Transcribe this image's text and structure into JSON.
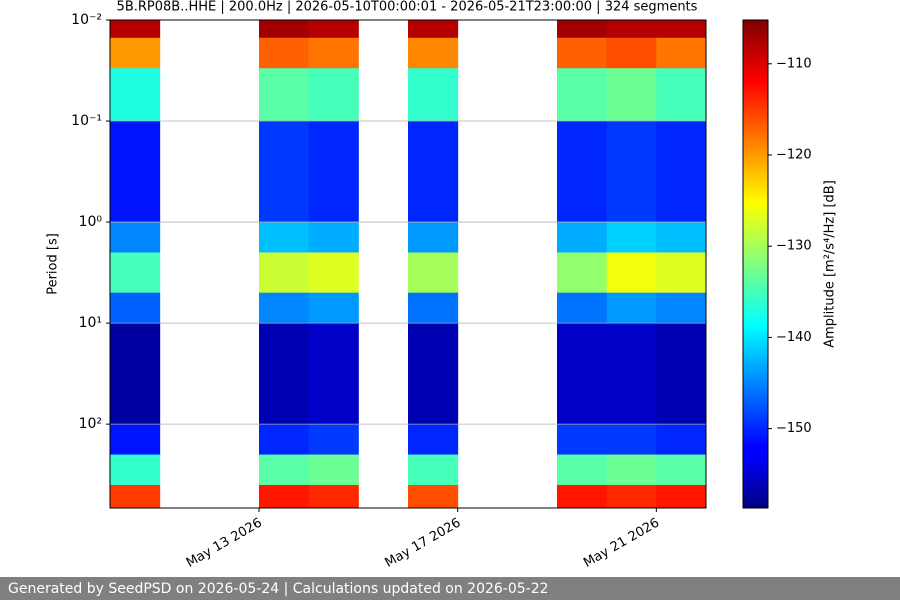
{
  "chart_data": {
    "type": "heatmap",
    "title": "5B.RP08B..HHE | 200.0Hz | 2026-05-10T00:00:01 - 2026-05-21T23:00:00 | 324 segments",
    "ylabel": "Period [s]",
    "colorbar_label": "Amplitude [m²/s⁴/Hz] [dB]",
    "footer": "Generated by SeedPSD on 2026-05-24 | Calculations updated on 2026-05-22",
    "colormap": "jet",
    "log_y": true,
    "invert_y": true,
    "grid": true,
    "x": [
      "2026-05-10",
      "2026-05-11",
      "2026-05-12",
      "2026-05-13",
      "2026-05-14",
      "2026-05-15",
      "2026-05-16",
      "2026-05-17",
      "2026-05-18",
      "2026-05-19",
      "2026-05-20",
      "2026-05-21",
      "2026-05-22"
    ],
    "y": [
      0.01,
      0.015,
      0.03,
      0.1,
      1,
      2,
      5,
      10,
      100,
      200,
      400,
      676
    ],
    "z": [
      [
        -108,
        null,
        null,
        -107,
        -108,
        null,
        -108,
        null,
        null,
        -107,
        -108,
        -108
      ],
      [
        -120,
        null,
        null,
        -117,
        -118,
        null,
        -119,
        null,
        null,
        -117,
        -116,
        -118
      ],
      [
        -137,
        null,
        null,
        -134,
        -135,
        null,
        -136,
        null,
        null,
        -134,
        -133,
        -135
      ],
      [
        -151,
        null,
        null,
        -149,
        -150,
        null,
        -150,
        null,
        null,
        -150,
        -149,
        -150
      ],
      [
        -145,
        null,
        null,
        -142,
        -143,
        null,
        -144,
        null,
        null,
        -143,
        -141,
        -142
      ],
      [
        -135,
        null,
        null,
        -128,
        -127,
        null,
        -130,
        null,
        null,
        -131,
        -126,
        -127
      ],
      [
        -147,
        null,
        null,
        -145,
        -144,
        null,
        -146,
        null,
        null,
        -146,
        -144,
        -145
      ],
      [
        -157,
        null,
        null,
        -156,
        -155,
        null,
        -156,
        null,
        null,
        -155,
        -155,
        -156
      ],
      [
        -151,
        null,
        null,
        -150,
        -149,
        null,
        -150,
        null,
        null,
        -149,
        -149,
        -150
      ],
      [
        -136,
        null,
        null,
        -134,
        -133,
        null,
        -135,
        null,
        null,
        -134,
        -133,
        -134
      ],
      [
        -115,
        null,
        null,
        -113,
        -114,
        null,
        -116,
        null,
        null,
        -113,
        -114,
        -113
      ]
    ],
    "xlim": [
      "2026-05-10",
      "2026-05-22"
    ],
    "xticks": [
      {
        "value": "2026-05-13",
        "label": "May 13 2026"
      },
      {
        "value": "2026-05-17",
        "label": "May 17 2026"
      },
      {
        "value": "2026-05-21",
        "label": "May 21 2026"
      }
    ],
    "ylim": [
      0.01,
      676
    ],
    "yticks": [
      {
        "value": 0.01,
        "label": "10⁻²"
      },
      {
        "value": 0.1,
        "label": "10⁻¹"
      },
      {
        "value": 1,
        "label": "10⁰"
      },
      {
        "value": 10,
        "label": "10¹"
      },
      {
        "value": 100,
        "label": "10²"
      }
    ],
    "clim": [
      -158.7,
      -105.2
    ],
    "cticks": [
      {
        "value": -110,
        "label": "−110"
      },
      {
        "value": -120,
        "label": "−120"
      },
      {
        "value": -130,
        "label": "−130"
      },
      {
        "value": -140,
        "label": "−140"
      },
      {
        "value": -150,
        "label": "−150"
      }
    ]
  }
}
